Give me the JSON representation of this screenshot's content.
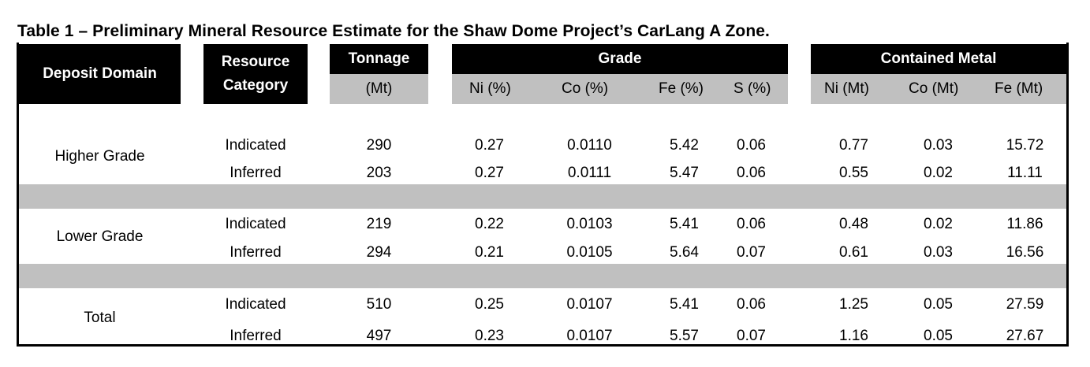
{
  "title": "Table 1 – Preliminary Mineral Resource Estimate for the Shaw Dome Project’s CarLang A Zone.",
  "header": {
    "deposit_domain": "Deposit Domain",
    "resource_category_line1": "Resource",
    "resource_category_line2": "Category",
    "tonnage": "Tonnage",
    "tonnage_unit": "(Mt)",
    "grade": "Grade",
    "contained_metal": "Contained Metal",
    "grade_cols": [
      "Ni (%)",
      "Co (%)",
      "Fe (%)",
      "S (%)"
    ],
    "metal_cols": [
      "Ni (Mt)",
      "Co (Mt)",
      "Fe (Mt)"
    ]
  },
  "groups": [
    {
      "domain": "Higher Grade",
      "rows": [
        {
          "category": "Indicated",
          "tonnage": "290",
          "ni": "0.27",
          "co": "0.0110",
          "fe": "5.42",
          "s": "0.06",
          "ni_mt": "0.77",
          "co_mt": "0.03",
          "fe_mt": "15.72"
        },
        {
          "category": "Inferred",
          "tonnage": "203",
          "ni": "0.27",
          "co": "0.0111",
          "fe": "5.47",
          "s": "0.06",
          "ni_mt": "0.55",
          "co_mt": "0.02",
          "fe_mt": "11.11"
        }
      ]
    },
    {
      "domain": "Lower Grade",
      "rows": [
        {
          "category": "Indicated",
          "tonnage": "219",
          "ni": "0.22",
          "co": "0.0103",
          "fe": "5.41",
          "s": "0.06",
          "ni_mt": "0.48",
          "co_mt": "0.02",
          "fe_mt": "11.86"
        },
        {
          "category": "Inferred",
          "tonnage": "294",
          "ni": "0.21",
          "co": "0.0105",
          "fe": "5.64",
          "s": "0.07",
          "ni_mt": "0.61",
          "co_mt": "0.03",
          "fe_mt": "16.56"
        }
      ]
    },
    {
      "domain": "Total",
      "rows": [
        {
          "category": "Indicated",
          "tonnage": "510",
          "ni": "0.25",
          "co": "0.0107",
          "fe": "5.41",
          "s": "0.06",
          "ni_mt": "1.25",
          "co_mt": "0.05",
          "fe_mt": "27.59"
        },
        {
          "category": "Inferred",
          "tonnage": "497",
          "ni": "0.23",
          "co": "0.0107",
          "fe": "5.57",
          "s": "0.07",
          "ni_mt": "1.16",
          "co_mt": "0.05",
          "fe_mt": "27.67"
        }
      ]
    }
  ]
}
